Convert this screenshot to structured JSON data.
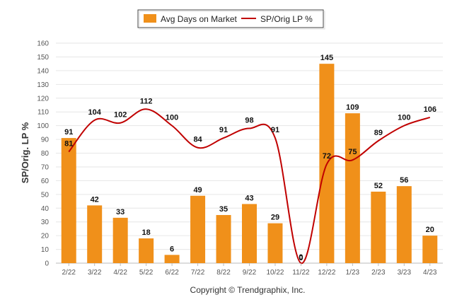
{
  "chart_data": {
    "type": "bar",
    "categories": [
      "2/22",
      "3/22",
      "4/22",
      "5/22",
      "6/22",
      "7/22",
      "8/22",
      "9/22",
      "10/22",
      "11/22",
      "12/22",
      "1/23",
      "2/23",
      "3/23",
      "4/23"
    ],
    "series": [
      {
        "name": "Avg Days on Market",
        "type": "bar",
        "color": "#f0901a",
        "values": [
          91,
          42,
          33,
          18,
          6,
          49,
          35,
          43,
          29,
          0,
          145,
          109,
          52,
          56,
          20
        ]
      },
      {
        "name": "SP/Orig LP %",
        "type": "line",
        "color": "#c00000",
        "values": [
          81,
          104,
          102,
          112,
          100,
          84,
          91,
          98,
          91,
          0,
          72,
          75,
          89,
          100,
          106
        ]
      }
    ],
    "ylabel": "SP/Orig. LP %",
    "xlabel": "",
    "ylim": [
      0,
      160
    ],
    "yticks": [
      0,
      10,
      20,
      30,
      40,
      50,
      60,
      70,
      80,
      90,
      100,
      110,
      120,
      130,
      140,
      150,
      160
    ],
    "grid": true,
    "legend_position": "top-center"
  },
  "footer": {
    "copyright": "Copyright © Trendgraphix, Inc."
  }
}
